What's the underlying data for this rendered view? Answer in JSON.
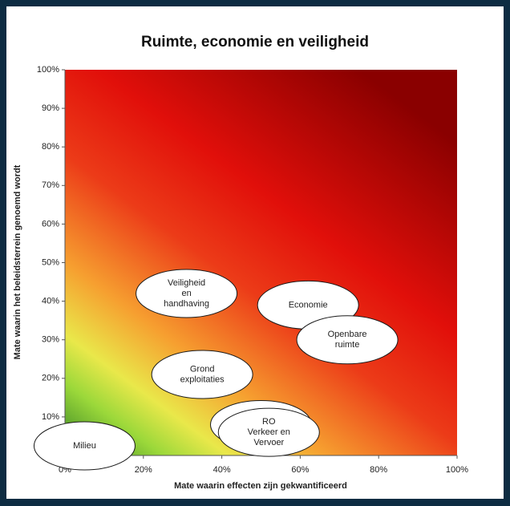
{
  "chart_data": {
    "type": "scatter",
    "title": "Ruimte, economie en veiligheid",
    "x_label": "Mate waarin effecten zijn gekwantificeerd",
    "y_label": "Mate waarin het beleidsterrein genoemd wordt",
    "x": [
      31,
      62,
      72,
      35,
      50,
      52,
      5
    ],
    "values": [
      42,
      39,
      30,
      21,
      8,
      6,
      2.5
    ],
    "labels": [
      [
        "Veiligheid",
        "en",
        "handhaving"
      ],
      [
        "Economie"
      ],
      [
        "Openbare",
        "ruimte"
      ],
      [
        "Grond",
        "exploitaties"
      ],
      null,
      [
        "RO",
        "Verkeer en",
        "Vervoer"
      ],
      [
        "Milieu"
      ]
    ],
    "xlim": [
      0,
      100
    ],
    "ylim": [
      0,
      100
    ],
    "xticks": [
      {
        "value": 0,
        "label": "0%"
      },
      {
        "value": 20,
        "label": "20%"
      },
      {
        "value": 40,
        "label": "40%"
      },
      {
        "value": 60,
        "label": "60%"
      },
      {
        "value": 80,
        "label": "80%"
      },
      {
        "value": 100,
        "label": "100%"
      }
    ],
    "yticks": [
      {
        "value": 0,
        "label": "0%"
      },
      {
        "value": 10,
        "label": "10%"
      },
      {
        "value": 20,
        "label": "20%"
      },
      {
        "value": 30,
        "label": "30%"
      },
      {
        "value": 40,
        "label": "40%"
      },
      {
        "value": 50,
        "label": "50%"
      },
      {
        "value": 60,
        "label": "60%"
      },
      {
        "value": 70,
        "label": "70%"
      },
      {
        "value": 80,
        "label": "80%"
      },
      {
        "value": 90,
        "label": "90%"
      },
      {
        "value": 100,
        "label": "100%"
      }
    ]
  }
}
